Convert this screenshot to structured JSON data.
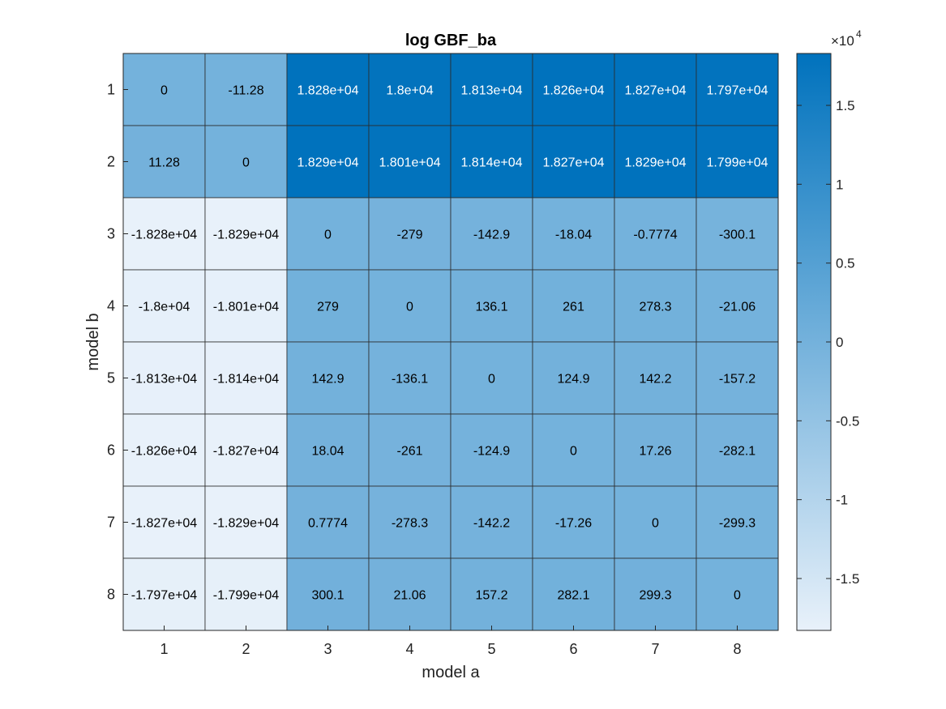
{
  "chart_data": {
    "type": "heatmap",
    "title": "log GBF_ba",
    "xlabel": "model a",
    "ylabel": "model b",
    "x_categories": [
      "1",
      "2",
      "3",
      "4",
      "5",
      "6",
      "7",
      "8"
    ],
    "y_categories": [
      "1",
      "2",
      "3",
      "4",
      "5",
      "6",
      "7",
      "8"
    ],
    "cell_labels": [
      [
        "0",
        "-11.28",
        "1.828e+04",
        "1.8e+04",
        "1.813e+04",
        "1.826e+04",
        "1.827e+04",
        "1.797e+04"
      ],
      [
        "11.28",
        "0",
        "1.829e+04",
        "1.801e+04",
        "1.814e+04",
        "1.827e+04",
        "1.829e+04",
        "1.799e+04"
      ],
      [
        "-1.828e+04",
        "-1.829e+04",
        "0",
        "-279",
        "-142.9",
        "-18.04",
        "-0.7774",
        "-300.1"
      ],
      [
        "-1.8e+04",
        "-1.801e+04",
        "279",
        "0",
        "136.1",
        "261",
        "278.3",
        "-21.06"
      ],
      [
        "-1.813e+04",
        "-1.814e+04",
        "142.9",
        "-136.1",
        "0",
        "124.9",
        "142.2",
        "-157.2"
      ],
      [
        "-1.826e+04",
        "-1.827e+04",
        "18.04",
        "-261",
        "-124.9",
        "0",
        "17.26",
        "-282.1"
      ],
      [
        "-1.827e+04",
        "-1.829e+04",
        "0.7774",
        "-278.3",
        "-142.2",
        "-17.26",
        "0",
        "-299.3"
      ],
      [
        "-1.797e+04",
        "-1.799e+04",
        "300.1",
        "21.06",
        "157.2",
        "282.1",
        "299.3",
        "0"
      ]
    ],
    "color_range": [
      -18290,
      18290
    ],
    "colorbar": {
      "ticks": [
        -1.5,
        -1,
        -0.5,
        0,
        0.5,
        1,
        1.5
      ],
      "tick_labels": [
        "-1.5",
        "-1",
        "-0.5",
        "0",
        "0.5",
        "1",
        "1.5"
      ],
      "exponent_base": "×10",
      "exponent_power": "4",
      "scale": 10000
    },
    "colormap": {
      "low": "#e8f1fa",
      "high": "#0072bd"
    },
    "text_color_light": "#ffffff",
    "text_color_dark": "#000000",
    "grid": true
  }
}
